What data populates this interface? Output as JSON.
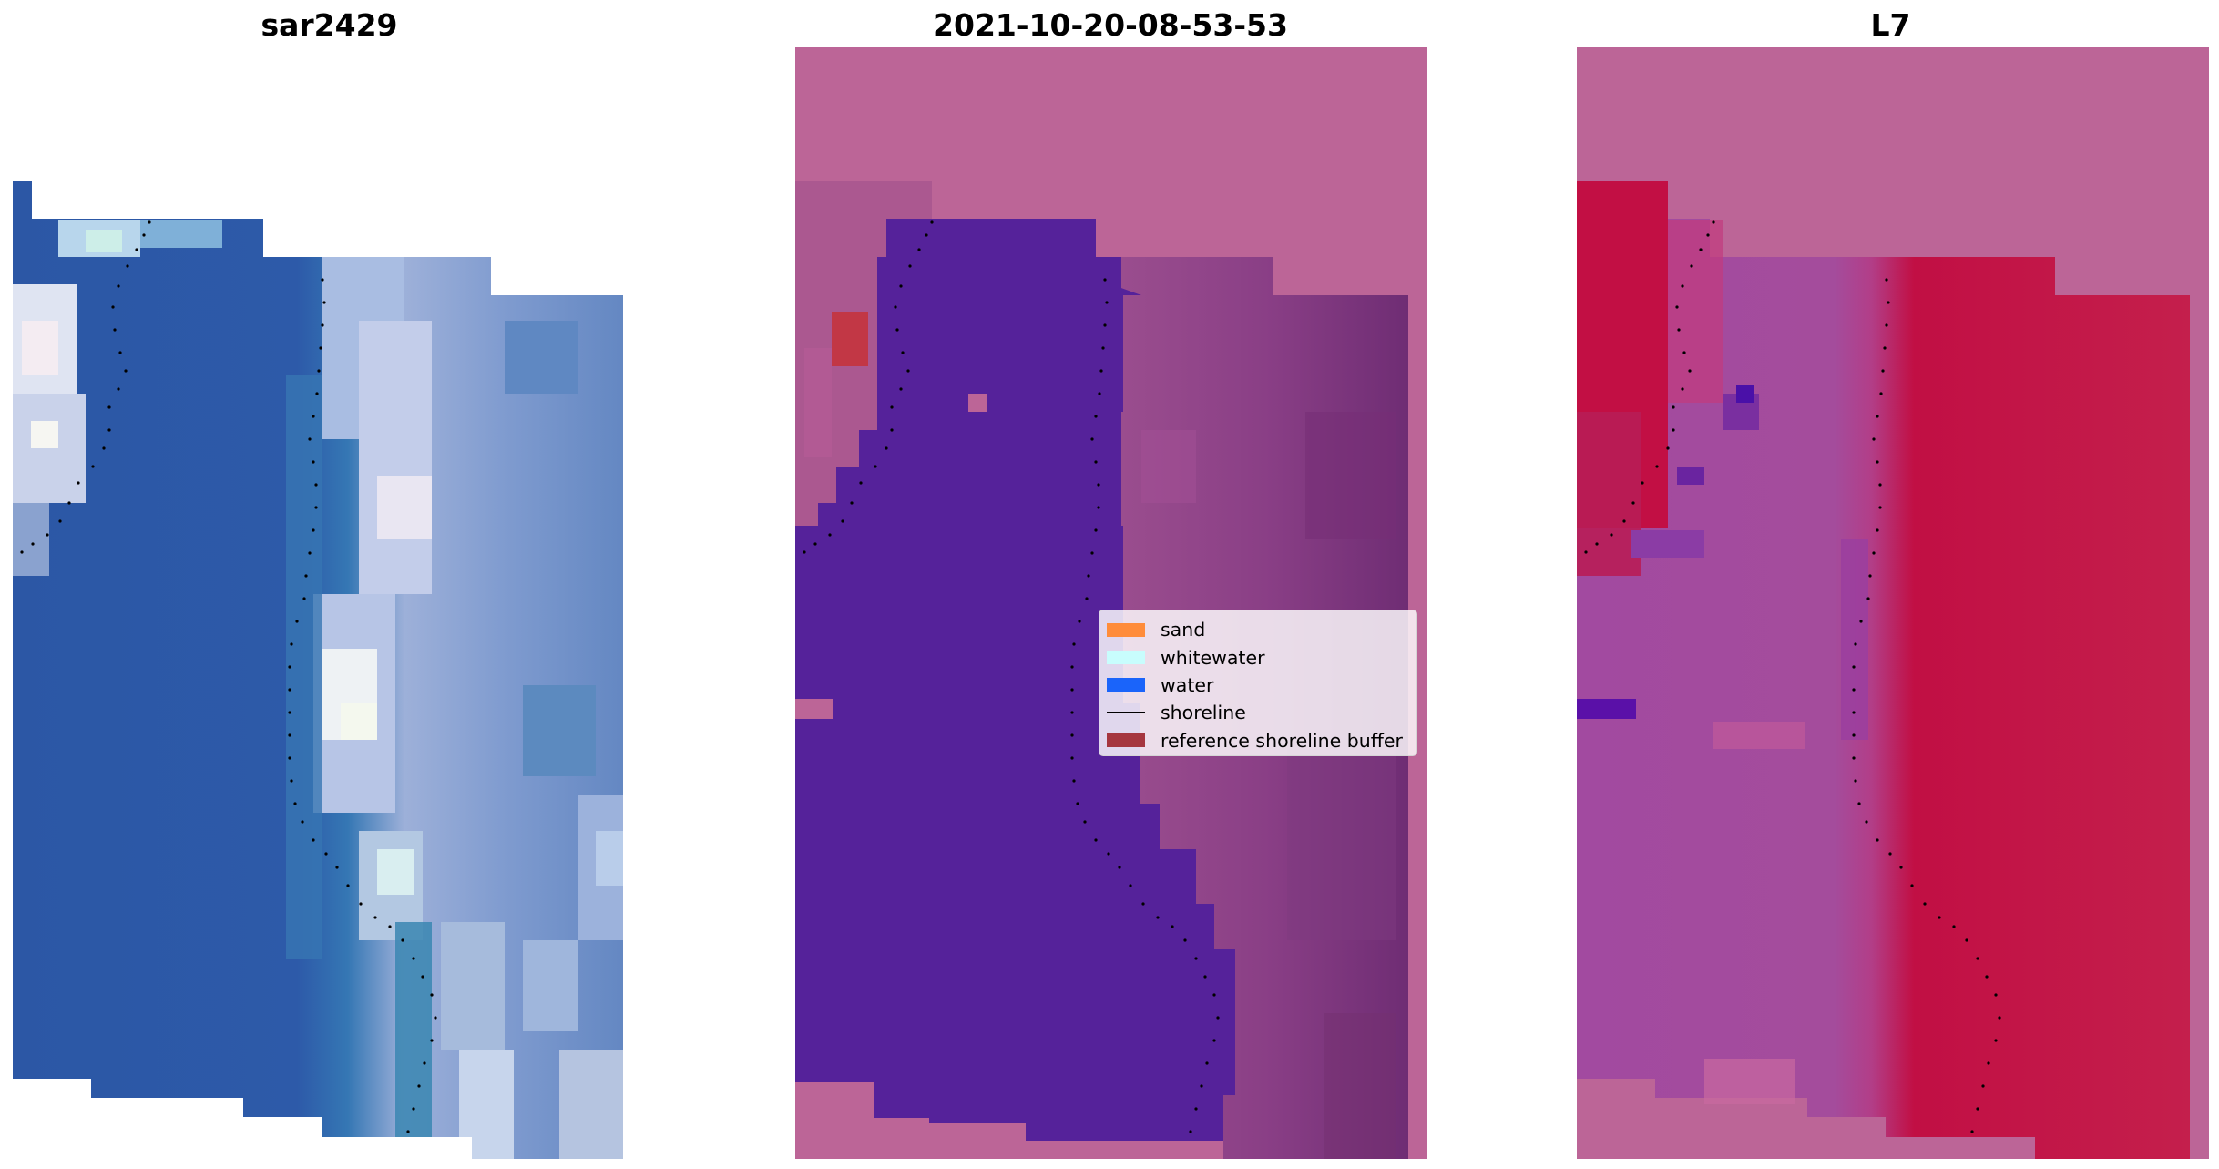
{
  "panels": [
    {
      "title": "sar2429",
      "content": "satellite-rgb-image"
    },
    {
      "title": "2021-10-20-08-53-53",
      "content": "classified-image"
    },
    {
      "title": "L7",
      "content": "water-index-image"
    }
  ],
  "legend": {
    "items": [
      {
        "label": "sand",
        "color": "#ff8c3a",
        "kind": "patch"
      },
      {
        "label": "whitewater",
        "color": "#c8fdfd",
        "kind": "patch"
      },
      {
        "label": "water",
        "color": "#1a64fa",
        "kind": "patch"
      },
      {
        "label": "shoreline",
        "color": "#000000",
        "kind": "line"
      },
      {
        "label": "reference shoreline buffer",
        "color": "#a5363f",
        "kind": "patch"
      }
    ]
  },
  "colors": {
    "rgb_water": "#2f5aa8",
    "rgb_teal": "#3577b4",
    "rgb_surf": "#aab8dc",
    "rgb_foam": "#e6ecf6",
    "class_background": "#bc6597",
    "class_water": "#55229a",
    "class_land_gradient": "#8a3f86",
    "index_background": "#bc6597",
    "index_high": "#c10f44",
    "index_mid": "#a24aa0",
    "shoreline": "#000000"
  }
}
